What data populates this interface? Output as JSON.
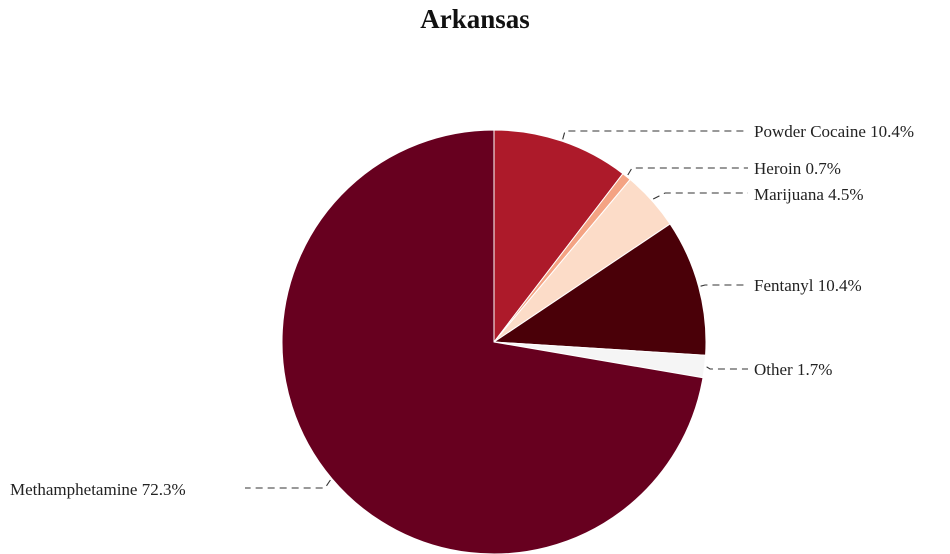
{
  "chart_data": {
    "type": "pie",
    "title": "Arkansas",
    "start_angle_deg": 0,
    "direction": "clockwise",
    "slices": [
      {
        "name": "Powder Cocaine",
        "value": 10.4,
        "label": "Powder Cocaine 10.4%",
        "color": "#ad1a2a"
      },
      {
        "name": "Heroin",
        "value": 0.7,
        "label": "Heroin 0.7%",
        "color": "#f4a383"
      },
      {
        "name": "Marijuana",
        "value": 4.5,
        "label": "Marijuana 4.5%",
        "color": "#fcdcc8"
      },
      {
        "name": "Fentanyl",
        "value": 10.4,
        "label": "Fentanyl 10.4%",
        "color": "#4a0008"
      },
      {
        "name": "Other",
        "value": 1.7,
        "label": "Other 1.7%",
        "color": "#f5f5f5"
      },
      {
        "name": "Methamphetamine",
        "value": 72.3,
        "label": "Methamphetamine 72.3%",
        "color": "#67001f"
      }
    ]
  }
}
